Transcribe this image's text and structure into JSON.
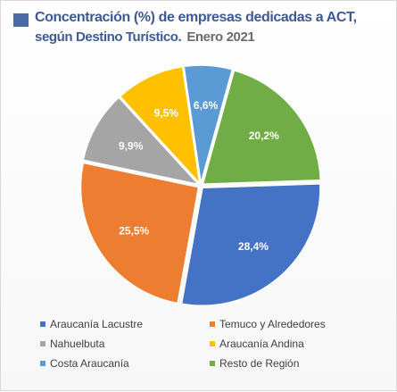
{
  "title": {
    "line1": "Concentración (%) de empresas dedicadas a ACT,",
    "line2": "según Destino Turístico.",
    "date": "Enero 2021"
  },
  "chart_data": {
    "type": "pie",
    "title": "Concentración (%) de empresas dedicadas a ACT, según Destino Turístico. Enero 2021",
    "legend_position": "bottom",
    "slices": [
      {
        "name": "Araucanía Lacustre",
        "value": 28.4,
        "label": "28,4%",
        "color": "#4472c4"
      },
      {
        "name": "Temuco y Alrededores",
        "value": 25.5,
        "label": "25,5%",
        "color": "#ed7d31"
      },
      {
        "name": "Nahuelbuta",
        "value": 9.9,
        "label": "9,9%",
        "color": "#a5a5a5"
      },
      {
        "name": "Araucanía Andina",
        "value": 9.5,
        "label": "9,5%",
        "color": "#ffc000"
      },
      {
        "name": "Costa Araucanía",
        "value": 6.6,
        "label": "6,6%",
        "color": "#5b9bd5"
      },
      {
        "name": "Resto de Región",
        "value": 20.2,
        "label": "20,2%",
        "color": "#70ad47"
      }
    ]
  }
}
